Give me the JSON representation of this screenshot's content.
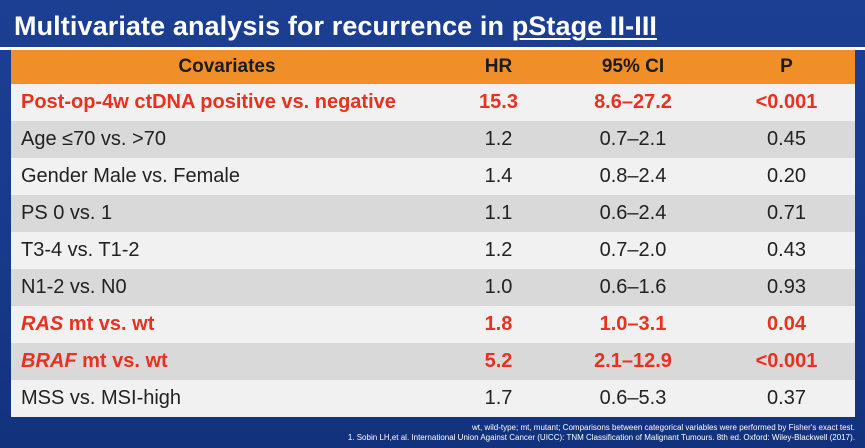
{
  "slide": {
    "title_prefix": "Multivariate analysis for recurrence in ",
    "title_emphasis": "pStage II-III"
  },
  "table": {
    "headers": {
      "covariates": "Covariates",
      "hr": "HR",
      "ci": "95% CI",
      "p": "P"
    },
    "rows": [
      {
        "covariate": "Post-op-4w ctDNA positive vs. negative",
        "hr": "15.3",
        "ci": "8.6–27.2",
        "p": "<0.001"
      },
      {
        "covariate": "Age ≤70 vs. >70",
        "hr": "1.2",
        "ci": "0.7–2.1",
        "p": "0.45"
      },
      {
        "covariate": "Gender Male vs. Female",
        "hr": "1.4",
        "ci": "0.8–2.4",
        "p": "0.20"
      },
      {
        "covariate": "PS 0 vs. 1",
        "hr": "1.1",
        "ci": "0.6–2.4",
        "p": "0.71"
      },
      {
        "covariate": "T3-4 vs. T1-2",
        "hr": "1.2",
        "ci": "0.7–2.0",
        "p": "0.43"
      },
      {
        "covariate": "N1-2 vs. N0",
        "hr": "1.0",
        "ci": "0.6–1.6",
        "p": "0.93"
      },
      {
        "gene": "RAS",
        "covariate_rest": " mt vs. wt",
        "hr": "1.8",
        "ci": "1.0–3.1",
        "p": "0.04"
      },
      {
        "gene": "BRAF",
        "covariate_rest": " mt vs. wt",
        "hr": "5.2",
        "ci": "2.1–12.9",
        "p": "<0.001"
      },
      {
        "covariate": "MSS vs. MSI-high",
        "hr": "1.7",
        "ci": "0.6–5.3",
        "p": "0.37"
      }
    ]
  },
  "footnotes": {
    "line1": "wt, wild-type; mt, mutant; Comparisons between categorical variables were performed by Fisher's exact test.",
    "line2": "1. Sobin LH,et al. International Union Against Cancer (UICC): TNM Classification of Malignant Tumours. 8th ed. Oxford: Wiley-Blackwell (2017)."
  },
  "colors": {
    "background": "#1c3f93",
    "header_fill": "#f08f27",
    "highlight_text": "#e8311f",
    "row_light": "#f1f1f1",
    "row_dark": "#d9d9d9"
  }
}
